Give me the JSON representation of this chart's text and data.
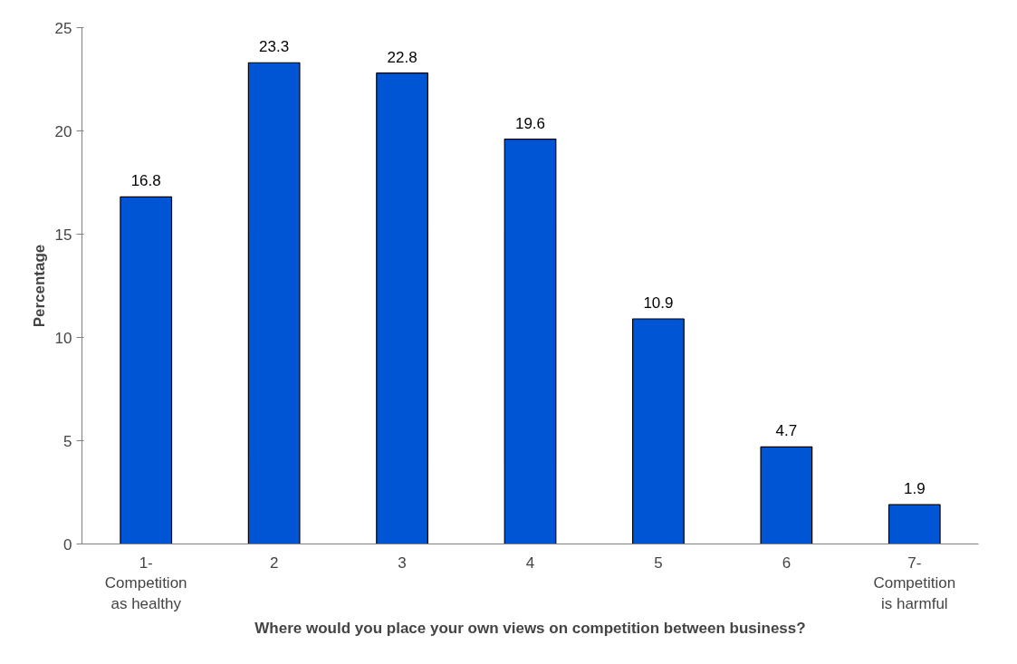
{
  "chart_data": {
    "type": "bar",
    "categories": [
      "1-\nCompetition\nas healthy",
      "2",
      "3",
      "4",
      "5",
      "6",
      "7-\nCompetition\nis harmful"
    ],
    "values": [
      16.8,
      23.3,
      22.8,
      19.6,
      10.9,
      4.7,
      1.9
    ],
    "color": "#0055d4",
    "xlabel": "Where would you place your own views on competition between business?",
    "ylabel": "Percentage",
    "ylim": [
      0,
      25
    ],
    "yticks": [
      0,
      5,
      10,
      15,
      20,
      25
    ],
    "grid": false,
    "data_labels": true
  }
}
